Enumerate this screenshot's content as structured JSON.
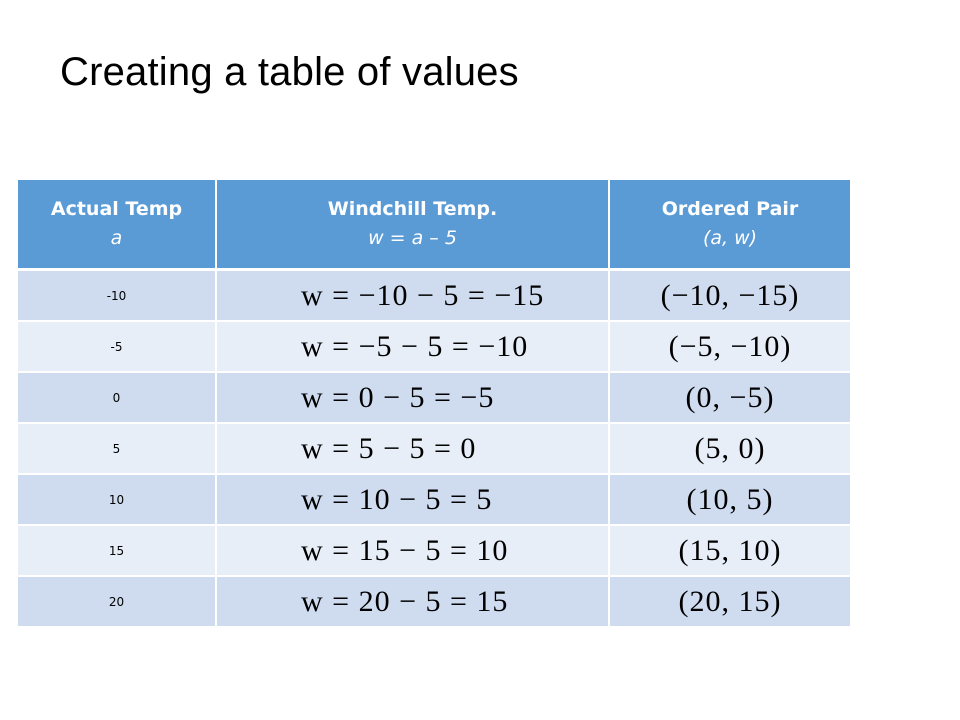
{
  "title": "Creating a table of values",
  "table": {
    "headers": [
      {
        "label": "Actual Temp",
        "sub": "a"
      },
      {
        "label": "Windchill Temp.",
        "sub": "w = a – 5"
      },
      {
        "label": "Ordered Pair",
        "sub": "(a, w)"
      }
    ],
    "rows": [
      {
        "actual": "-10",
        "equation": "w = −10 − 5 = −15",
        "pair": "(−10, −15)"
      },
      {
        "actual": "-5",
        "equation": "w = −5 − 5 = −10",
        "pair": "(−5, −10)"
      },
      {
        "actual": "0",
        "equation": "w = 0 − 5 = −5",
        "pair": "(0, −5)"
      },
      {
        "actual": "5",
        "equation": "w = 5 − 5 = 0",
        "pair": "(5, 0)"
      },
      {
        "actual": "10",
        "equation": "w = 10 − 5 = 5",
        "pair": "(10, 5)"
      },
      {
        "actual": "15",
        "equation": "w = 15 − 5 = 10",
        "pair": "(15, 10)"
      },
      {
        "actual": "20",
        "equation": "w = 20 − 5 = 15",
        "pair": "(20, 15)"
      }
    ]
  },
  "colors": {
    "header": "#5b9bd5",
    "row_odd": "#cfdcef",
    "row_even": "#e8eef8"
  }
}
